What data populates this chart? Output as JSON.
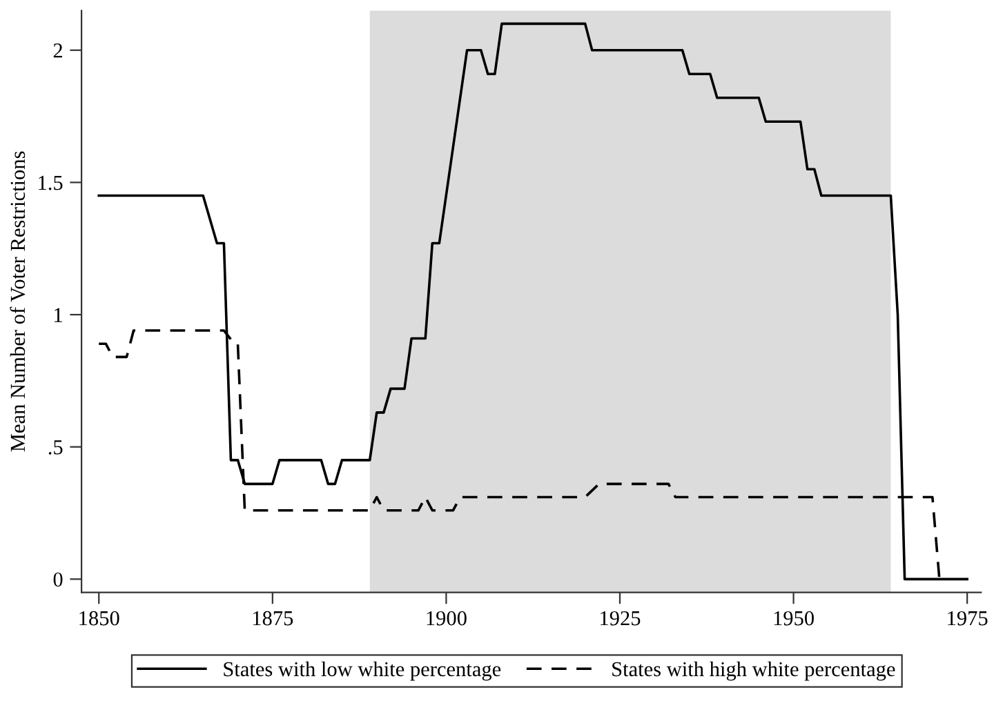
{
  "chart_data": {
    "type": "line",
    "ylabel": "Mean Number of Voter Restrictions",
    "xlim": [
      1847.5,
      1977
    ],
    "ylim": [
      -0.05,
      2.15
    ],
    "xticks": [
      1850,
      1875,
      1900,
      1925,
      1950,
      1975
    ],
    "yticks": [
      0,
      {
        "value": 0.5,
        "label": ".5"
      },
      1,
      1.5,
      2
    ],
    "grid": false,
    "legend": "bottom",
    "bands": [
      {
        "axis": "x",
        "from": 1889,
        "to": 1964,
        "color": "#dcdcdc"
      }
    ],
    "series": [
      {
        "name": "States with low white percentage",
        "color": "#000000",
        "line_style": "solid",
        "x": [
          1850,
          1865,
          1867,
          1868,
          1869,
          1870,
          1871,
          1875,
          1876,
          1882,
          1883,
          1884,
          1885,
          1889,
          1890,
          1891,
          1892,
          1894,
          1895,
          1897,
          1898,
          1899,
          1903,
          1905,
          1906,
          1907,
          1908,
          1920,
          1921,
          1934,
          1935,
          1938,
          1939,
          1945,
          1946,
          1951,
          1952,
          1953,
          1954,
          1964,
          1965,
          1966,
          1975
        ],
        "values": [
          1.45,
          1.45,
          1.27,
          1.27,
          0.45,
          0.45,
          0.36,
          0.36,
          0.45,
          0.45,
          0.36,
          0.36,
          0.45,
          0.45,
          0.63,
          0.63,
          0.72,
          0.72,
          0.91,
          0.91,
          1.27,
          1.27,
          2.0,
          2.0,
          1.91,
          1.91,
          2.1,
          2.1,
          2.0,
          2.0,
          1.91,
          1.91,
          1.82,
          1.82,
          1.73,
          1.73,
          1.55,
          1.55,
          1.45,
          1.45,
          1.0,
          0,
          0
        ]
      },
      {
        "name": "States with high white percentage",
        "color": "#000000",
        "line_style": "dashed",
        "x": [
          1850,
          1851,
          1852,
          1854,
          1855,
          1868,
          1869.5,
          1870,
          1871,
          1889,
          1890,
          1891,
          1892,
          1896,
          1897,
          1898,
          1901,
          1902,
          1920,
          1922,
          1932,
          1933,
          1970,
          1971
        ],
        "values": [
          0.89,
          0.89,
          0.84,
          0.84,
          0.94,
          0.94,
          0.89,
          0.89,
          0.26,
          0.26,
          0.31,
          0.26,
          0.26,
          0.26,
          0.31,
          0.26,
          0.26,
          0.31,
          0.31,
          0.36,
          0.36,
          0.31,
          0.31,
          0
        ]
      }
    ]
  }
}
